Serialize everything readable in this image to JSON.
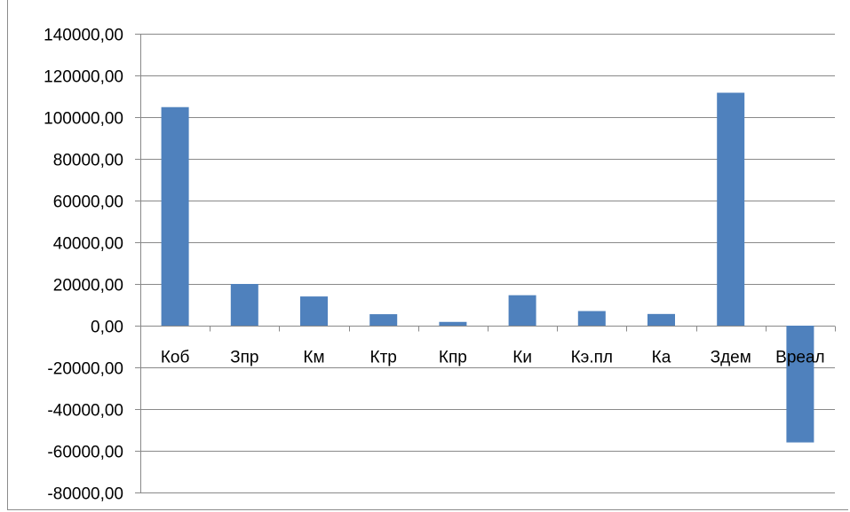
{
  "chart_data": {
    "type": "bar",
    "title": "",
    "xlabel": "",
    "ylabel": "",
    "categories": [
      "Коб",
      "Зпр",
      "Км",
      "Ктр",
      "Кпр",
      "Ки",
      "Кэ.пл",
      "Ка",
      "Здем",
      "Вреал"
    ],
    "values": [
      104800,
      20000,
      14000,
      5500,
      1800,
      14600,
      7000,
      5600,
      111700,
      -56000
    ],
    "ylim": [
      -80000,
      140000
    ],
    "yticks": [
      140000,
      120000,
      100000,
      80000,
      60000,
      40000,
      20000,
      0,
      -20000,
      -40000,
      -60000,
      -80000
    ],
    "ytick_labels": [
      "140000,00",
      "120000,00",
      "100000,00",
      "80000,00",
      "60000,00",
      "40000,00",
      "20000,00",
      "0,00",
      "-20000,00",
      "-40000,00",
      "-60000,00",
      "-80000,00"
    ],
    "grid": true,
    "legend": "none",
    "bar_color": "#4f81bd"
  }
}
